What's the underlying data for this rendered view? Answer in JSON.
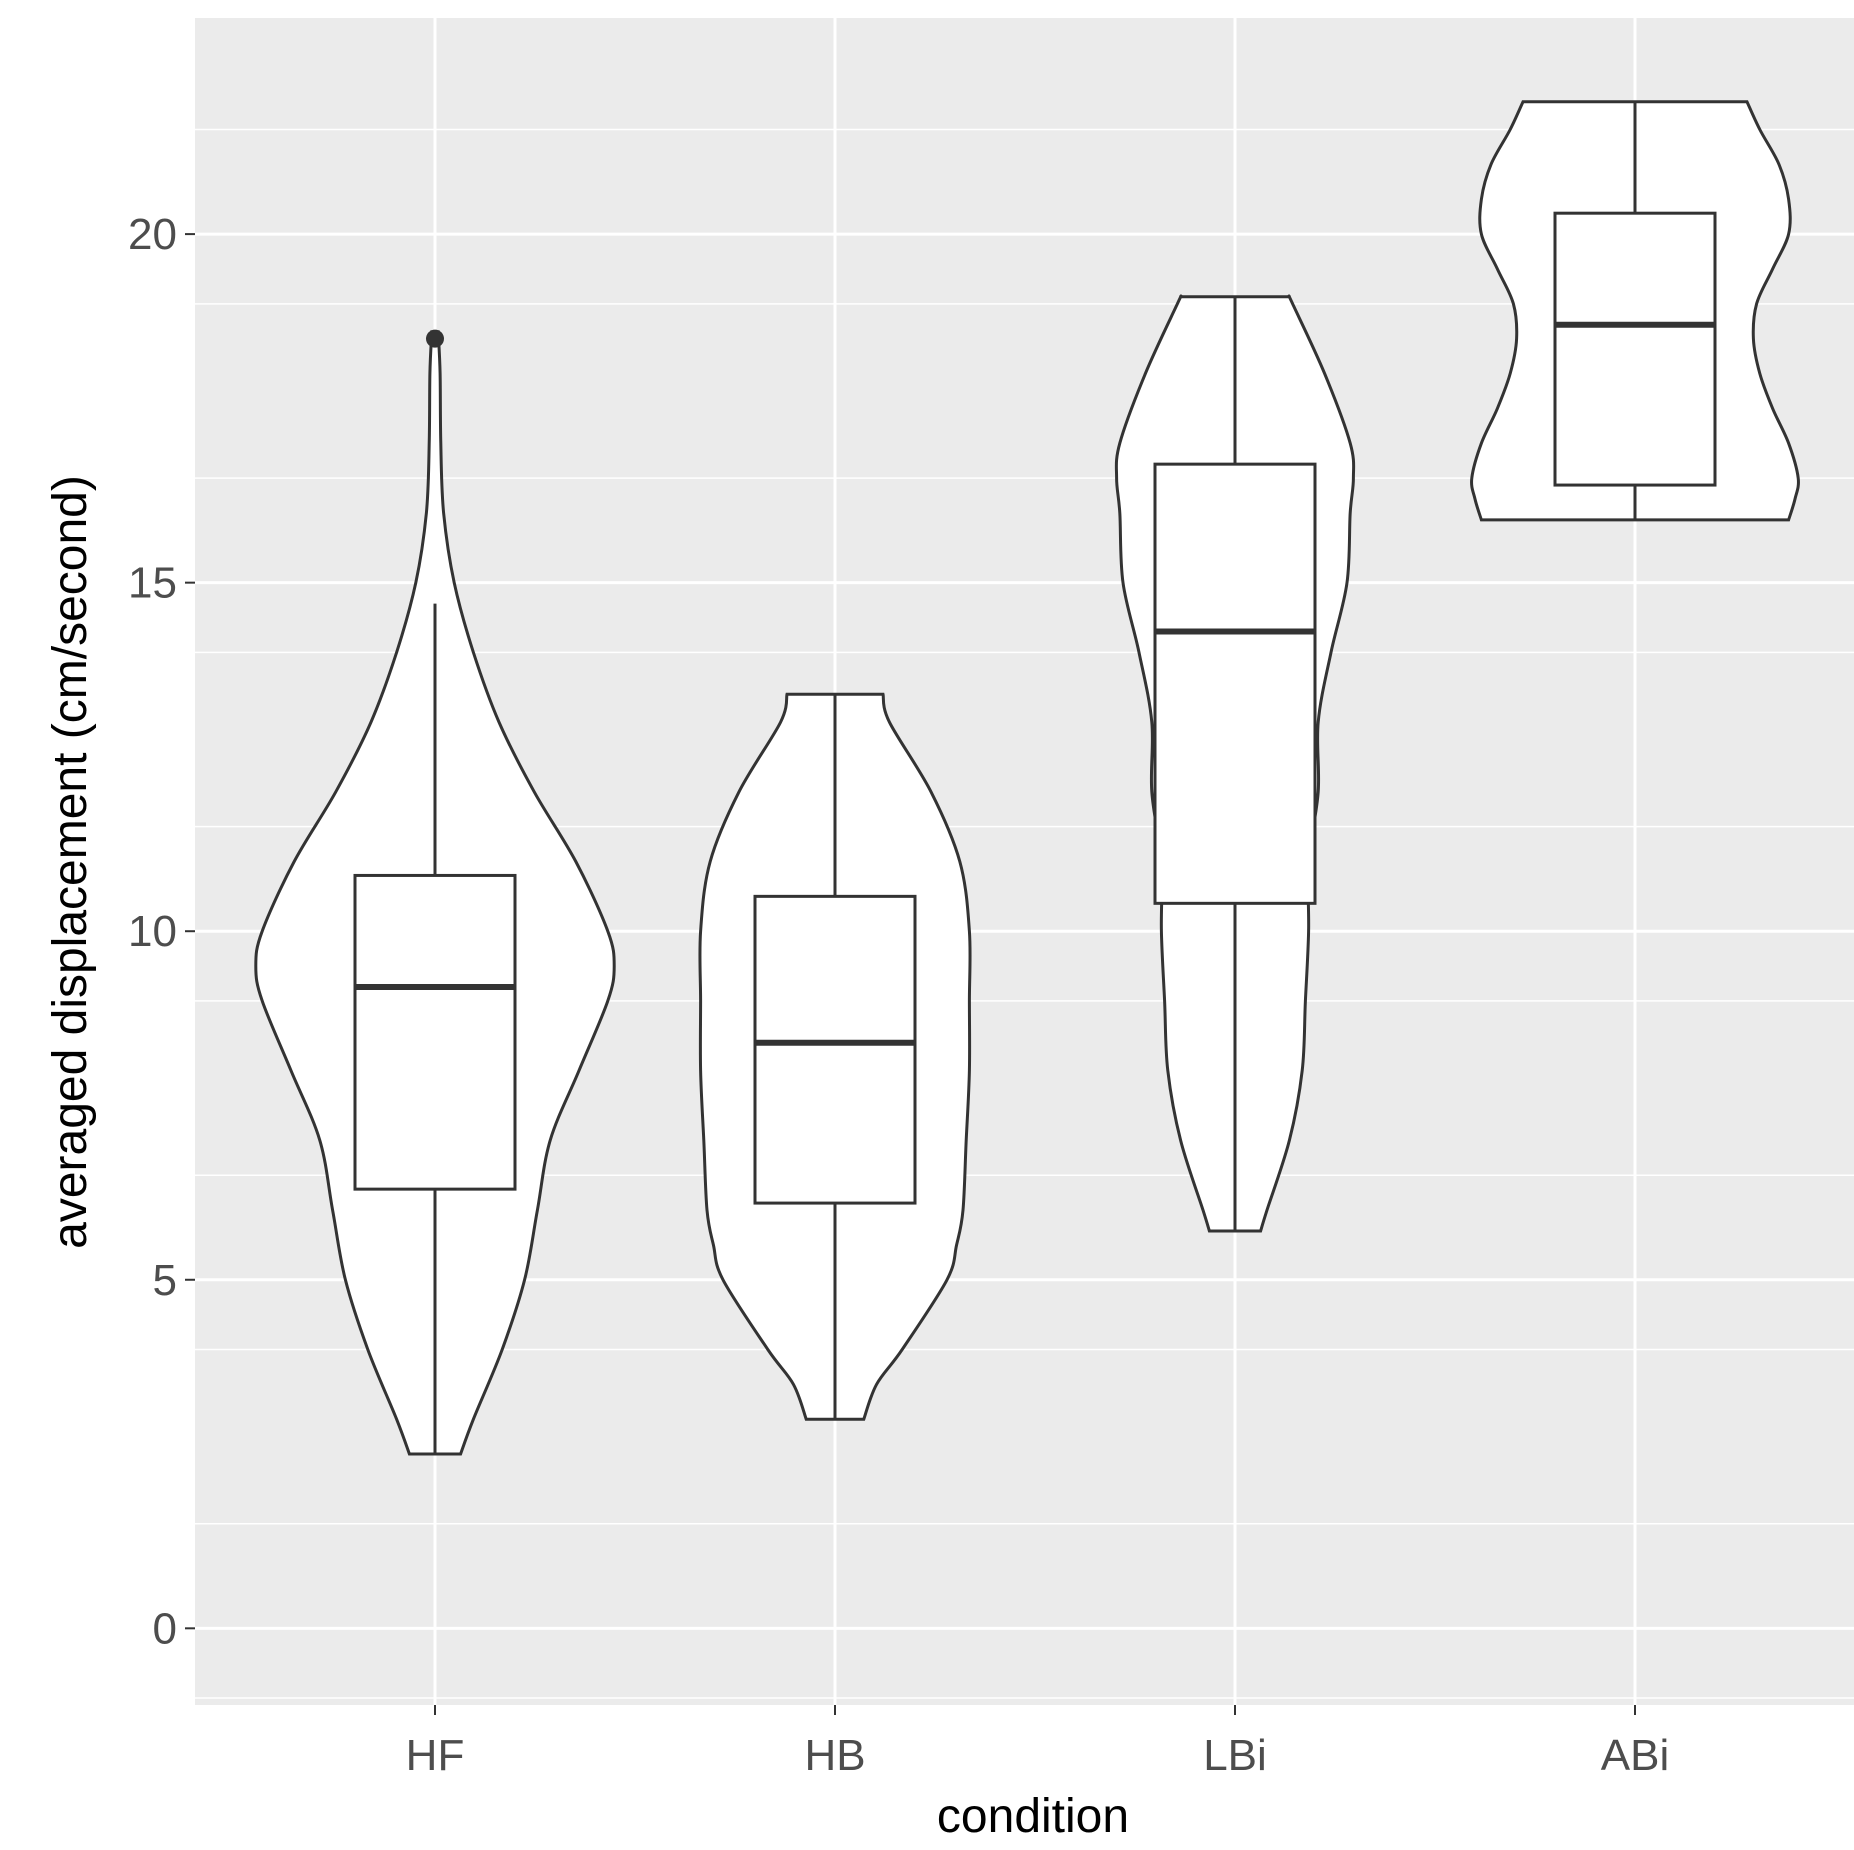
{
  "chart_data": {
    "type": "violin",
    "xlabel": "condition",
    "ylabel": "averaged displacement (cm/second)",
    "categories": [
      "HF",
      "HB",
      "LBi",
      "ABi"
    ],
    "ylim": [
      -1.1,
      23.1
    ],
    "yticks": [
      0,
      5,
      10,
      15,
      20
    ],
    "ytick_labels": [
      "0",
      "5",
      "10",
      "15",
      "20"
    ],
    "grid": true,
    "colors": {
      "panel": "#ebebeb",
      "grid": "#ffffff",
      "fill": "#ffffff",
      "stroke": "#333333"
    },
    "groups": [
      {
        "category": "HF",
        "box": {
          "q1": 6.3,
          "median": 9.2,
          "q3": 10.8,
          "whisker_low": 2.5,
          "whisker_high": 14.7
        },
        "outliers": [
          18.5
        ],
        "violin_profile": [
          [
            2.5,
            0.08
          ],
          [
            3.0,
            0.12
          ],
          [
            4.0,
            0.21
          ],
          [
            5.0,
            0.28
          ],
          [
            6.0,
            0.32
          ],
          [
            7.0,
            0.36
          ],
          [
            8.0,
            0.45
          ],
          [
            9.0,
            0.54
          ],
          [
            9.5,
            0.56
          ],
          [
            10.0,
            0.54
          ],
          [
            11.0,
            0.44
          ],
          [
            12.0,
            0.31
          ],
          [
            13.0,
            0.2
          ],
          [
            14.0,
            0.12
          ],
          [
            15.0,
            0.06
          ],
          [
            16.0,
            0.027
          ],
          [
            17.0,
            0.018
          ],
          [
            18.0,
            0.016
          ],
          [
            18.6,
            0.01
          ]
        ]
      },
      {
        "category": "HB",
        "box": {
          "q1": 6.1,
          "median": 8.4,
          "q3": 10.5,
          "whisker_low": 3.0,
          "whisker_high": 13.4
        },
        "outliers": [],
        "violin_profile": [
          [
            3.0,
            0.09
          ],
          [
            3.5,
            0.13
          ],
          [
            4.0,
            0.21
          ],
          [
            5.0,
            0.35
          ],
          [
            5.5,
            0.38
          ],
          [
            6.0,
            0.4
          ],
          [
            7.0,
            0.41
          ],
          [
            8.0,
            0.42
          ],
          [
            9.0,
            0.42
          ],
          [
            10.0,
            0.42
          ],
          [
            11.0,
            0.39
          ],
          [
            12.0,
            0.3
          ],
          [
            13.0,
            0.17
          ],
          [
            13.4,
            0.15
          ]
        ]
      },
      {
        "category": "LBi",
        "box": {
          "q1": 10.4,
          "median": 14.3,
          "q3": 16.7,
          "whisker_low": 5.7,
          "whisker_high": 19.1
        },
        "outliers": [],
        "violin_profile": [
          [
            5.7,
            0.08
          ],
          [
            6.0,
            0.1
          ],
          [
            7.0,
            0.17
          ],
          [
            8.0,
            0.21
          ],
          [
            9.0,
            0.22
          ],
          [
            10.0,
            0.23
          ],
          [
            11.0,
            0.23
          ],
          [
            12.0,
            0.26
          ],
          [
            13.0,
            0.26
          ],
          [
            14.0,
            0.3
          ],
          [
            15.0,
            0.35
          ],
          [
            16.0,
            0.36
          ],
          [
            16.5,
            0.37
          ],
          [
            17.0,
            0.36
          ],
          [
            18.0,
            0.28
          ],
          [
            19.0,
            0.18
          ],
          [
            19.1,
            0.17
          ]
        ]
      },
      {
        "category": "ABi",
        "box": {
          "q1": 16.4,
          "median": 18.7,
          "q3": 20.3,
          "whisker_low": 15.9,
          "whisker_high": 21.9
        },
        "outliers": [],
        "violin_profile": [
          [
            15.9,
            0.48
          ],
          [
            16.2,
            0.5
          ],
          [
            16.5,
            0.51
          ],
          [
            17.0,
            0.48
          ],
          [
            17.5,
            0.43
          ],
          [
            18.0,
            0.39
          ],
          [
            18.5,
            0.37
          ],
          [
            19.0,
            0.38
          ],
          [
            19.5,
            0.43
          ],
          [
            20.0,
            0.48
          ],
          [
            20.5,
            0.48
          ],
          [
            21.0,
            0.45
          ],
          [
            21.5,
            0.39
          ],
          [
            21.9,
            0.35
          ]
        ]
      }
    ]
  }
}
